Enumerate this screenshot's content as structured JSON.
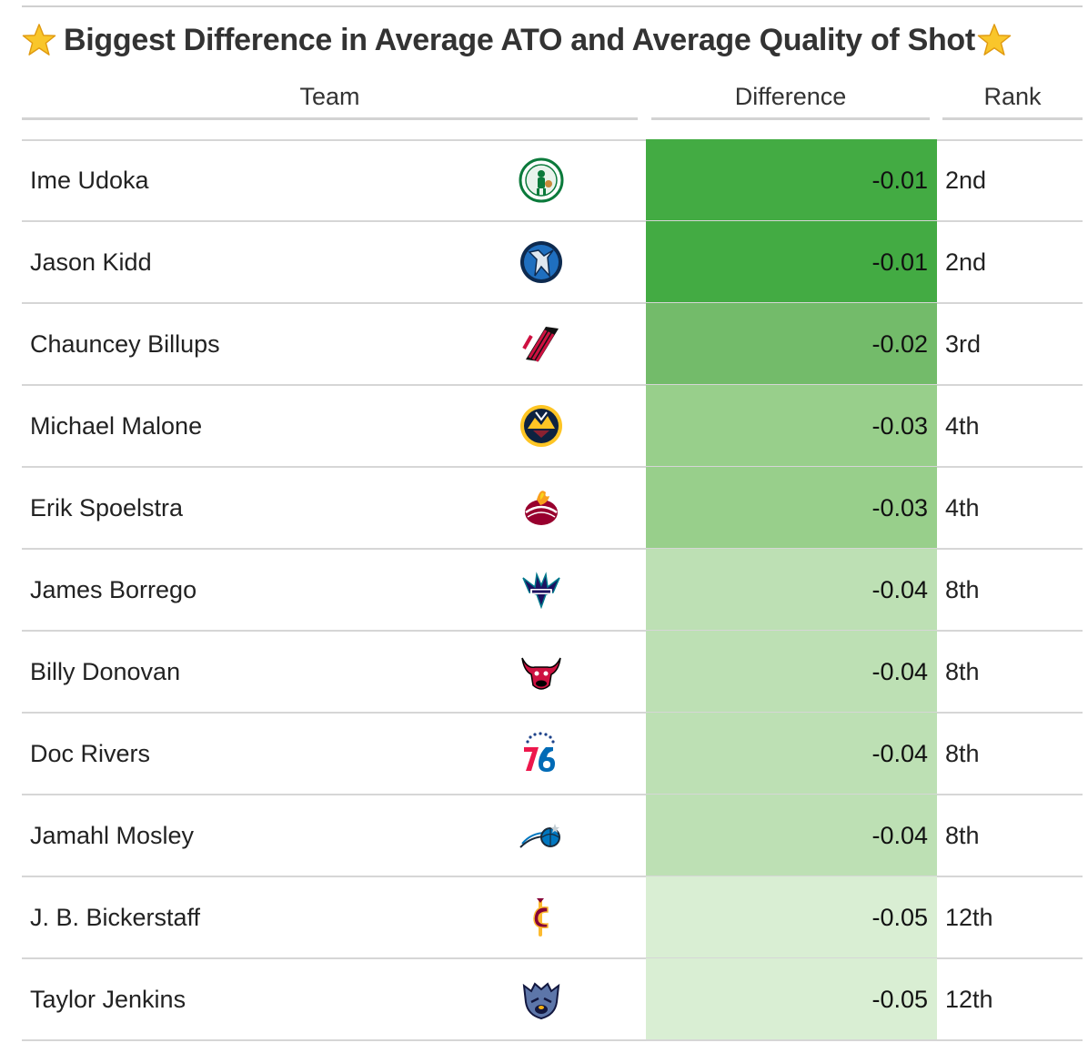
{
  "title": "Biggest Difference in Average ATO and Average Quality of Shot",
  "title_icon": "star-emoji",
  "columns": {
    "team": "Team",
    "difference": "Difference",
    "rank": "Rank"
  },
  "colors": {
    "dark_green": "#43ab43",
    "mid_green": "#73bb6a",
    "light_green": "#98cf8b",
    "pale_green": "#bde0b4",
    "palest_green": "#d9eed3"
  },
  "chart_data": {
    "type": "table",
    "title": "Biggest Difference in Average ATO and Average Quality of Shot",
    "columns": [
      "Team",
      "Difference",
      "Rank"
    ],
    "rows": [
      {
        "coach": "Ime Udoka",
        "team_logo": "celtics-logo",
        "difference": "-0.01",
        "value": -0.01,
        "rank": "2nd",
        "color": "#43ab43"
      },
      {
        "coach": "Jason Kidd",
        "team_logo": "mavericks-logo",
        "difference": "-0.01",
        "value": -0.01,
        "rank": "2nd",
        "color": "#43ab43"
      },
      {
        "coach": "Chauncey Billups",
        "team_logo": "trail-blazers-logo",
        "difference": "-0.02",
        "value": -0.02,
        "rank": "3rd",
        "color": "#73bb6a"
      },
      {
        "coach": "Michael Malone",
        "team_logo": "nuggets-logo",
        "difference": "-0.03",
        "value": -0.03,
        "rank": "4th",
        "color": "#98cf8b"
      },
      {
        "coach": "Erik Spoelstra",
        "team_logo": "heat-logo",
        "difference": "-0.03",
        "value": -0.03,
        "rank": "4th",
        "color": "#98cf8b"
      },
      {
        "coach": "James Borrego",
        "team_logo": "hornets-logo",
        "difference": "-0.04",
        "value": -0.04,
        "rank": "8th",
        "color": "#bde0b4"
      },
      {
        "coach": "Billy Donovan",
        "team_logo": "bulls-logo",
        "difference": "-0.04",
        "value": -0.04,
        "rank": "8th",
        "color": "#bde0b4"
      },
      {
        "coach": "Doc Rivers",
        "team_logo": "76ers-logo",
        "difference": "-0.04",
        "value": -0.04,
        "rank": "8th",
        "color": "#bde0b4"
      },
      {
        "coach": "Jamahl Mosley",
        "team_logo": "magic-logo",
        "difference": "-0.04",
        "value": -0.04,
        "rank": "8th",
        "color": "#bde0b4"
      },
      {
        "coach": "J. B. Bickerstaff",
        "team_logo": "cavaliers-logo",
        "difference": "-0.05",
        "value": -0.05,
        "rank": "12th",
        "color": "#d9eed3"
      },
      {
        "coach": "Taylor Jenkins",
        "team_logo": "grizzlies-logo",
        "difference": "-0.05",
        "value": -0.05,
        "rank": "12th",
        "color": "#d9eed3"
      }
    ]
  }
}
